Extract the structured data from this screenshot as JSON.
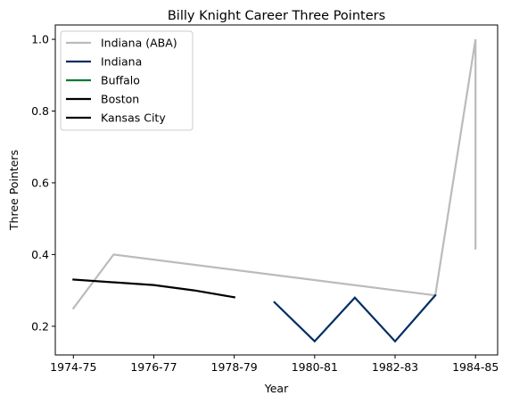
{
  "chart_data": {
    "type": "line",
    "title": "Billy Knight Career Three Pointers",
    "xlabel": "Year",
    "ylabel": "Three Pointers",
    "x_ticks": [
      "1974-75",
      "1976-77",
      "1978-79",
      "1980-81",
      "1982-83",
      "1984-85"
    ],
    "y_ticks": [
      "0.2",
      "0.4",
      "0.6",
      "0.8",
      "1.0"
    ],
    "xlim": [
      "1974-75",
      "1984-85"
    ],
    "ylim": [
      0.12,
      1.04
    ],
    "grid": false,
    "legend_position": "top-left",
    "series": [
      {
        "name": "Indiana (ABA)",
        "color": "#bbbbbb",
        "points": [
          {
            "x": "1974-75",
            "y": 0.25
          },
          {
            "x": "1975-76",
            "y": 0.4
          },
          {
            "x": "1983-84",
            "y": 0.286
          },
          {
            "x": "1984-85",
            "y": 1.0
          },
          {
            "x": "1984-85",
            "y": 0.417
          }
        ]
      },
      {
        "name": "Indiana",
        "color": "#002d62",
        "points": [
          {
            "x": "1979-80",
            "y": 0.267
          },
          {
            "x": "1980-81",
            "y": 0.158
          },
          {
            "x": "1981-82",
            "y": 0.28
          },
          {
            "x": "1982-83",
            "y": 0.158
          },
          {
            "x": "1983-84",
            "y": 0.286
          }
        ]
      },
      {
        "name": "Buffalo",
        "color": "#007a33",
        "points": []
      },
      {
        "name": "Boston",
        "color": "#000000",
        "points": []
      },
      {
        "name": "Kansas City",
        "color": "#000000",
        "points": [
          {
            "x": "1974-75",
            "y": 0.33
          },
          {
            "x": "1976-77",
            "y": 0.315
          },
          {
            "x": "1977-78",
            "y": 0.3
          },
          {
            "x": "1978-79",
            "y": 0.281
          }
        ]
      }
    ]
  }
}
